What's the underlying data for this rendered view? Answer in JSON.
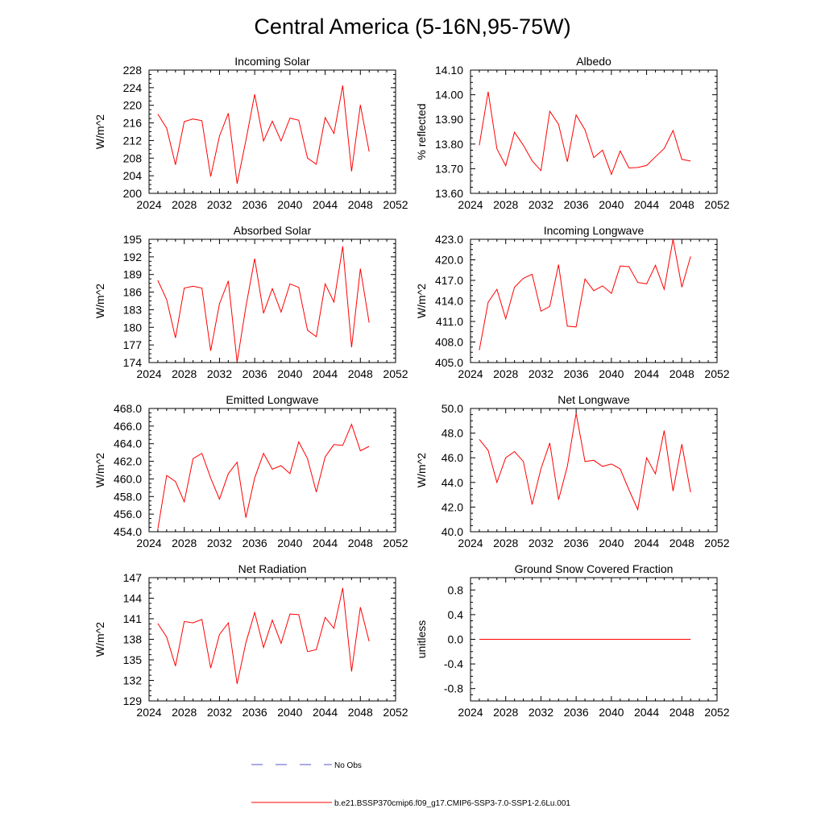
{
  "figure": {
    "title": "Central America (5-16N,95-75W)",
    "legend": [
      {
        "label": "No Obs",
        "color": "#5555cc",
        "dash": true
      },
      {
        "label": "b.e21.BSSP370cmip6.f09_g17.CMIP6-SSP3-7.0-SSP1-2.6Lu.001",
        "color": "#ff0000",
        "dash": false
      }
    ]
  },
  "chart_data": [
    {
      "type": "line",
      "title": "Incoming Solar",
      "ylabel": "W/m^2",
      "xlim": [
        2024,
        2052
      ],
      "ylim": [
        200,
        228
      ],
      "xticks": [
        "2024",
        "2028",
        "2032",
        "2036",
        "2040",
        "2044",
        "2048",
        "2052"
      ],
      "yticks": [
        "200",
        "204",
        "208",
        "212",
        "216",
        "220",
        "224",
        "228"
      ],
      "x": [
        2025,
        2026,
        2027,
        2028,
        2029,
        2030,
        2031,
        2032,
        2033,
        2034,
        2035,
        2036,
        2037,
        2038,
        2039,
        2040,
        2041,
        2042,
        2043,
        2044,
        2045,
        2046,
        2047,
        2048,
        2049
      ],
      "series": [
        {
          "color": "#ff0000",
          "values": [
            218.0,
            214.8,
            206.5,
            216.3,
            216.9,
            216.5,
            203.8,
            213.0,
            218.2,
            202.2,
            212.0,
            222.5,
            211.9,
            216.4,
            211.9,
            217.1,
            216.6,
            208.0,
            206.6,
            217.2,
            213.6,
            224.5,
            205.0,
            220.1,
            209.5
          ]
        }
      ]
    },
    {
      "type": "line",
      "title": "Albedo",
      "ylabel": "% reflected",
      "xlim": [
        2024,
        2052
      ],
      "ylim": [
        13.6,
        14.1
      ],
      "xticks": [
        "2024",
        "2028",
        "2032",
        "2036",
        "2040",
        "2044",
        "2048",
        "2052"
      ],
      "yticks": [
        "13.60",
        "13.70",
        "13.80",
        "13.90",
        "14.00",
        "14.10"
      ],
      "x": [
        2025,
        2026,
        2027,
        2028,
        2029,
        2030,
        2031,
        2032,
        2033,
        2034,
        2035,
        2036,
        2037,
        2038,
        2039,
        2040,
        2041,
        2042,
        2043,
        2044,
        2045,
        2046,
        2047,
        2048,
        2049
      ],
      "series": [
        {
          "color": "#ff0000",
          "values": [
            13.795,
            14.012,
            13.78,
            13.712,
            13.848,
            13.795,
            13.732,
            13.692,
            13.933,
            13.88,
            13.728,
            13.918,
            13.858,
            13.745,
            13.775,
            13.677,
            13.772,
            13.703,
            13.705,
            13.713,
            13.748,
            13.782,
            13.855,
            13.738,
            13.731
          ]
        }
      ]
    },
    {
      "type": "line",
      "title": "Absorbed Solar",
      "ylabel": "W/m^2",
      "xlim": [
        2024,
        2052
      ],
      "ylim": [
        174,
        195
      ],
      "xticks": [
        "2024",
        "2028",
        "2032",
        "2036",
        "2040",
        "2044",
        "2048",
        "2052"
      ],
      "yticks": [
        "174",
        "177",
        "180",
        "183",
        "186",
        "189",
        "192",
        "195"
      ],
      "x": [
        2025,
        2026,
        2027,
        2028,
        2029,
        2030,
        2031,
        2032,
        2033,
        2034,
        2035,
        2036,
        2037,
        2038,
        2039,
        2040,
        2041,
        2042,
        2043,
        2044,
        2045,
        2046,
        2047,
        2048,
        2049
      ],
      "series": [
        {
          "color": "#ff0000",
          "values": [
            188.0,
            184.7,
            178.2,
            186.7,
            187.0,
            186.7,
            176.0,
            184.0,
            187.9,
            174.1,
            183.5,
            191.7,
            182.4,
            186.6,
            182.6,
            187.4,
            186.8,
            179.5,
            178.4,
            187.4,
            184.3,
            193.8,
            176.6,
            190.0,
            180.8
          ]
        }
      ]
    },
    {
      "type": "line",
      "title": "Incoming Longwave",
      "ylabel": "W/m^2",
      "xlim": [
        2024,
        2052
      ],
      "ylim": [
        405,
        423
      ],
      "xticks": [
        "2024",
        "2028",
        "2032",
        "2036",
        "2040",
        "2044",
        "2048",
        "2052"
      ],
      "yticks": [
        "405.0",
        "408.0",
        "411.0",
        "414.0",
        "417.0",
        "420.0",
        "423.0"
      ],
      "x": [
        2025,
        2026,
        2027,
        2028,
        2029,
        2030,
        2031,
        2032,
        2033,
        2034,
        2035,
        2036,
        2037,
        2038,
        2039,
        2040,
        2041,
        2042,
        2043,
        2044,
        2045,
        2046,
        2047,
        2048,
        2049
      ],
      "series": [
        {
          "color": "#ff0000",
          "values": [
            406.8,
            413.8,
            415.7,
            411.4,
            416.0,
            417.3,
            417.9,
            412.5,
            413.2,
            419.3,
            410.3,
            410.2,
            417.2,
            415.5,
            416.2,
            415.1,
            419.1,
            419.0,
            416.7,
            416.5,
            419.2,
            415.7,
            423.0,
            416.0,
            420.5
          ]
        }
      ]
    },
    {
      "type": "line",
      "title": "Emitted Longwave",
      "ylabel": "W/m^2",
      "xlim": [
        2024,
        2052
      ],
      "ylim": [
        454,
        468
      ],
      "xticks": [
        "2024",
        "2028",
        "2032",
        "2036",
        "2040",
        "2044",
        "2048",
        "2052"
      ],
      "yticks": [
        "454.0",
        "456.0",
        "458.0",
        "460.0",
        "462.0",
        "464.0",
        "466.0",
        "468.0"
      ],
      "x": [
        2025,
        2026,
        2027,
        2028,
        2029,
        2030,
        2031,
        2032,
        2033,
        2034,
        2035,
        2036,
        2037,
        2038,
        2039,
        2040,
        2041,
        2042,
        2043,
        2044,
        2045,
        2046,
        2047,
        2048,
        2049
      ],
      "series": [
        {
          "color": "#ff0000",
          "values": [
            454.3,
            460.4,
            459.7,
            457.4,
            462.3,
            462.9,
            460.1,
            457.7,
            460.6,
            461.9,
            455.6,
            460.1,
            462.9,
            461.1,
            461.5,
            460.6,
            464.2,
            462.3,
            458.5,
            462.5,
            463.9,
            463.8,
            466.2,
            463.2,
            463.7
          ]
        }
      ]
    },
    {
      "type": "line",
      "title": "Net Longwave",
      "ylabel": "W/m^2",
      "xlim": [
        2024,
        2052
      ],
      "ylim": [
        40,
        50
      ],
      "xticks": [
        "2024",
        "2028",
        "2032",
        "2036",
        "2040",
        "2044",
        "2048",
        "2052"
      ],
      "yticks": [
        "40.0",
        "42.0",
        "44.0",
        "46.0",
        "48.0",
        "50.0"
      ],
      "x": [
        2025,
        2026,
        2027,
        2028,
        2029,
        2030,
        2031,
        2032,
        2033,
        2034,
        2035,
        2036,
        2037,
        2038,
        2039,
        2040,
        2041,
        2042,
        2043,
        2044,
        2045,
        2046,
        2047,
        2048,
        2049
      ],
      "series": [
        {
          "color": "#ff0000",
          "values": [
            47.5,
            46.6,
            44.0,
            46.0,
            46.5,
            45.7,
            42.2,
            45.1,
            47.2,
            42.6,
            45.3,
            49.6,
            45.7,
            45.8,
            45.3,
            45.5,
            45.1,
            43.4,
            41.8,
            46.0,
            44.7,
            48.2,
            43.3,
            47.1,
            43.2
          ]
        }
      ]
    },
    {
      "type": "line",
      "title": "Net Radiation",
      "ylabel": "W/m^2",
      "xlim": [
        2024,
        2052
      ],
      "ylim": [
        129,
        147
      ],
      "xticks": [
        "2024",
        "2028",
        "2032",
        "2036",
        "2040",
        "2044",
        "2048",
        "2052"
      ],
      "yticks": [
        "129",
        "132",
        "135",
        "138",
        "141",
        "144",
        "147"
      ],
      "x": [
        2025,
        2026,
        2027,
        2028,
        2029,
        2030,
        2031,
        2032,
        2033,
        2034,
        2035,
        2036,
        2037,
        2038,
        2039,
        2040,
        2041,
        2042,
        2043,
        2044,
        2045,
        2046,
        2047,
        2048,
        2049
      ],
      "series": [
        {
          "color": "#ff0000",
          "values": [
            140.3,
            138.3,
            134.1,
            140.6,
            140.4,
            140.9,
            133.8,
            138.7,
            140.4,
            131.5,
            137.5,
            141.9,
            136.8,
            140.8,
            137.4,
            141.7,
            141.6,
            136.2,
            136.5,
            141.2,
            139.6,
            145.5,
            133.3,
            142.7,
            137.7
          ]
        }
      ]
    },
    {
      "type": "line",
      "title": "Ground Snow Covered Fraction",
      "ylabel": "unitless",
      "xlim": [
        2024,
        2052
      ],
      "ylim": [
        -1.0,
        1.0
      ],
      "xticks": [
        "2024",
        "2028",
        "2032",
        "2036",
        "2040",
        "2044",
        "2048",
        "2052"
      ],
      "yticks": [
        "-0.8",
        "-0.4",
        "0.0",
        "0.4",
        "0.8"
      ],
      "ytick_values": [
        -0.8,
        -0.4,
        0.0,
        0.4,
        0.8
      ],
      "x": [
        2025,
        2026,
        2027,
        2028,
        2029,
        2030,
        2031,
        2032,
        2033,
        2034,
        2035,
        2036,
        2037,
        2038,
        2039,
        2040,
        2041,
        2042,
        2043,
        2044,
        2045,
        2046,
        2047,
        2048,
        2049
      ],
      "series": [
        {
          "color": "#ff0000",
          "values": [
            0,
            0,
            0,
            0,
            0,
            0,
            0,
            0,
            0,
            0,
            0,
            0,
            0,
            0,
            0,
            0,
            0,
            0,
            0,
            0,
            0,
            0,
            0,
            0,
            0
          ]
        }
      ]
    }
  ]
}
